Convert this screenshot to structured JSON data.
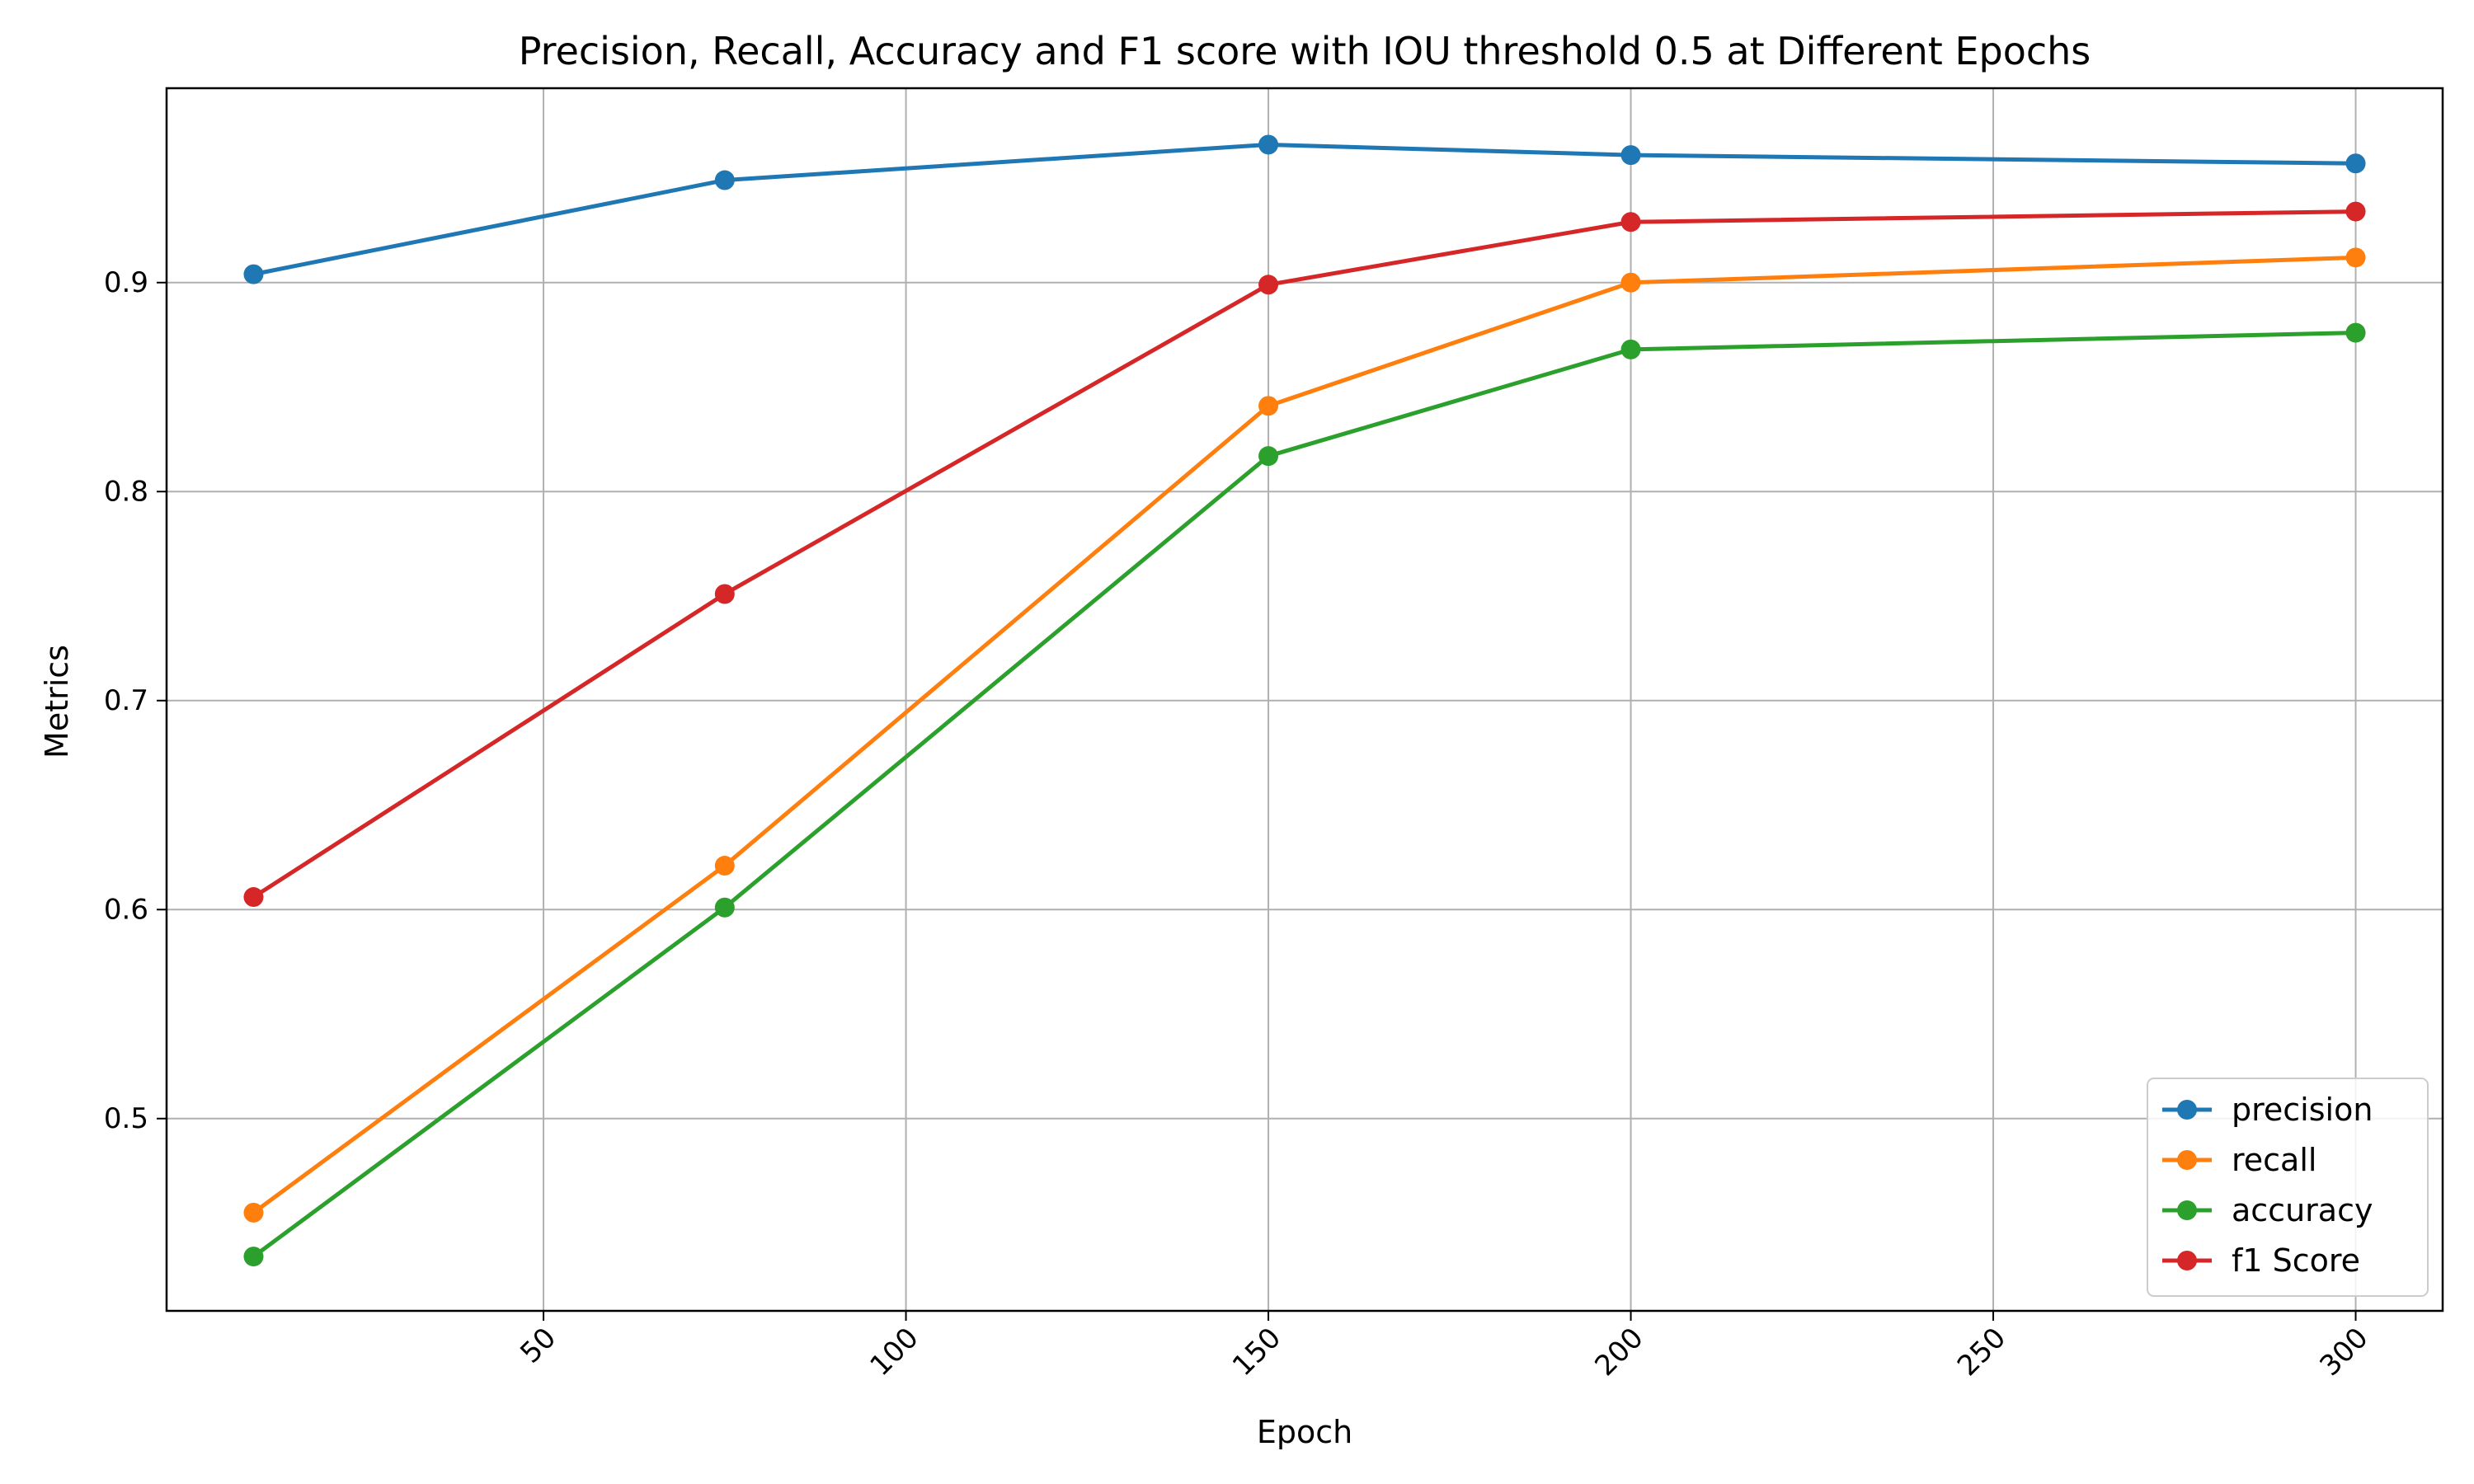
{
  "chart_data": {
    "type": "line",
    "title": "Precision, Recall, Accuracy and F1 score with IOU threshold 0.5 at Different Epochs",
    "xlabel": "Epoch",
    "ylabel": "Metrics",
    "x": [
      10,
      75,
      150,
      200,
      300
    ],
    "xlim": [
      -2,
      312
    ],
    "ylim": [
      0.408,
      0.993
    ],
    "xticks": [
      50,
      100,
      150,
      200,
      250,
      300
    ],
    "yticks": [
      0.5,
      0.6,
      0.7,
      0.8,
      0.9
    ],
    "xtick_labels": [
      "50",
      "100",
      "150",
      "200",
      "250",
      "300"
    ],
    "ytick_labels": [
      "0.5",
      "0.6",
      "0.7",
      "0.8",
      "0.9"
    ],
    "grid": true,
    "legend_position": "lower right",
    "series": [
      {
        "name": "precision",
        "color": "#1f77b4",
        "values": [
          0.904,
          0.949,
          0.966,
          0.961,
          0.957
        ]
      },
      {
        "name": "recall",
        "color": "#ff7f0e",
        "values": [
          0.455,
          0.621,
          0.841,
          0.9,
          0.912
        ]
      },
      {
        "name": "accuracy",
        "color": "#2ca02c",
        "values": [
          0.434,
          0.601,
          0.817,
          0.868,
          0.876
        ]
      },
      {
        "name": "f1 Score",
        "color": "#d62728",
        "values": [
          0.606,
          0.751,
          0.899,
          0.929,
          0.934
        ]
      }
    ]
  }
}
